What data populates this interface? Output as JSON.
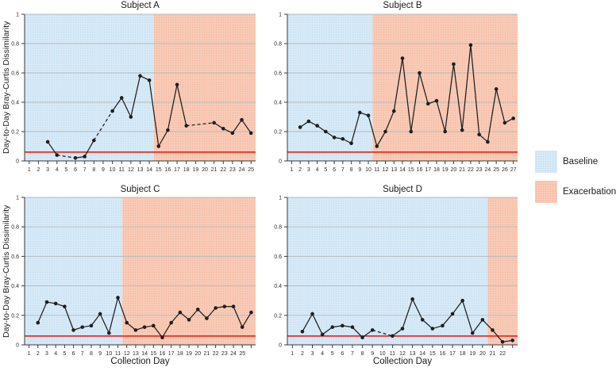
{
  "chart_data": {
    "type": "line",
    "ylabel": "Day-to-Day Bray-Curtis Dissimilarity",
    "xlabel": "Collection Day",
    "ylim": [
      0,
      1
    ],
    "yticks": [
      0,
      0.2,
      0.4,
      0.6,
      0.8,
      1
    ],
    "ytick_labels": [
      "0",
      "0.2",
      "0.4",
      "0.6",
      "0.8",
      "1"
    ],
    "threshold_value": 0.06,
    "grid": true,
    "legend_position": "right-middle",
    "gap_style": "missing collection days drawn as dashed connecting segments",
    "colors": {
      "baseline_fill": "#D6E9F7",
      "baseline_dot": "#BCD9EC",
      "exacerbation_fill": "#F8CAB6",
      "exacerbation_dot": "#F1AE96",
      "threshold_line": "#EC2D25",
      "data_line": "#1E1E1E",
      "grid_line": "#B3BBBF",
      "axis_line": "#3A3A3A"
    },
    "legend": [
      {
        "label": "Baseline",
        "color": "#D6E9F7"
      },
      {
        "label": "Exacerbation",
        "color": "#F8CAB6"
      }
    ],
    "panels": [
      {
        "id": "subject-a",
        "title": "Subject A",
        "x_ticks": 25,
        "x_last_label": 25,
        "baseline_end": 14.5,
        "points": [
          [
            3,
            0.13
          ],
          [
            4,
            0.04
          ],
          [
            6,
            0.02
          ],
          [
            7,
            0.03
          ],
          [
            8,
            0.14
          ],
          [
            10,
            0.34
          ],
          [
            11,
            0.43
          ],
          [
            12,
            0.3
          ],
          [
            13,
            0.58
          ],
          [
            14,
            0.55
          ],
          [
            15,
            0.1
          ],
          [
            16,
            0.21
          ],
          [
            17,
            0.52
          ],
          [
            18,
            0.24
          ],
          [
            21,
            0.26
          ],
          [
            22,
            0.22
          ],
          [
            23,
            0.19
          ],
          [
            24,
            0.28
          ],
          [
            25,
            0.19
          ]
        ]
      },
      {
        "id": "subject-b",
        "title": "Subject B",
        "x_ticks": 27,
        "x_last_label": 27,
        "baseline_end": 10.5,
        "points": [
          [
            2,
            0.23
          ],
          [
            3,
            0.27
          ],
          [
            4,
            0.24
          ],
          [
            5,
            0.2
          ],
          [
            6,
            0.16
          ],
          [
            7,
            0.15
          ],
          [
            8,
            0.12
          ],
          [
            9,
            0.33
          ],
          [
            10,
            0.31
          ],
          [
            11,
            0.1
          ],
          [
            12,
            0.2
          ],
          [
            13,
            0.34
          ],
          [
            14,
            0.7
          ],
          [
            15,
            0.2
          ],
          [
            16,
            0.6
          ],
          [
            17,
            0.39
          ],
          [
            18,
            0.41
          ],
          [
            19,
            0.2
          ],
          [
            20,
            0.66
          ],
          [
            21,
            0.21
          ],
          [
            22,
            0.79
          ],
          [
            23,
            0.18
          ],
          [
            24,
            0.13
          ],
          [
            25,
            0.49
          ],
          [
            26,
            0.26
          ],
          [
            27,
            0.29
          ]
        ]
      },
      {
        "id": "subject-c",
        "title": "Subject C",
        "x_ticks": 26,
        "x_last_label": 25,
        "baseline_end": 11.5,
        "points": [
          [
            2,
            0.15
          ],
          [
            3,
            0.29
          ],
          [
            4,
            0.28
          ],
          [
            5,
            0.26
          ],
          [
            6,
            0.1
          ],
          [
            7,
            0.12
          ],
          [
            8,
            0.13
          ],
          [
            9,
            0.21
          ],
          [
            10,
            0.08
          ],
          [
            11,
            0.32
          ],
          [
            12,
            0.15
          ],
          [
            13,
            0.1
          ],
          [
            14,
            0.12
          ],
          [
            15,
            0.13
          ],
          [
            16,
            0.05
          ],
          [
            17,
            0.15
          ],
          [
            18,
            0.22
          ],
          [
            19,
            0.17
          ],
          [
            20,
            0.24
          ],
          [
            21,
            0.18
          ],
          [
            22,
            0.25
          ],
          [
            23,
            0.26
          ],
          [
            24,
            0.26
          ],
          [
            25,
            0.12
          ],
          [
            26,
            0.22
          ]
        ]
      },
      {
        "id": "subject-d",
        "title": "Subject D",
        "x_ticks": 23,
        "x_last_label": 22,
        "baseline_end": 20.5,
        "points": [
          [
            2,
            0.09
          ],
          [
            3,
            0.21
          ],
          [
            4,
            0.07
          ],
          [
            5,
            0.12
          ],
          [
            6,
            0.13
          ],
          [
            7,
            0.12
          ],
          [
            8,
            0.05
          ],
          [
            9,
            0.1
          ],
          [
            11,
            0.06
          ],
          [
            12,
            0.11
          ],
          [
            13,
            0.31
          ],
          [
            14,
            0.17
          ],
          [
            15,
            0.11
          ],
          [
            16,
            0.13
          ],
          [
            17,
            0.21
          ],
          [
            18,
            0.3
          ],
          [
            19,
            0.08
          ],
          [
            20,
            0.17
          ],
          [
            21,
            0.1
          ],
          [
            22,
            0.02
          ],
          [
            23,
            0.03
          ]
        ]
      }
    ]
  }
}
